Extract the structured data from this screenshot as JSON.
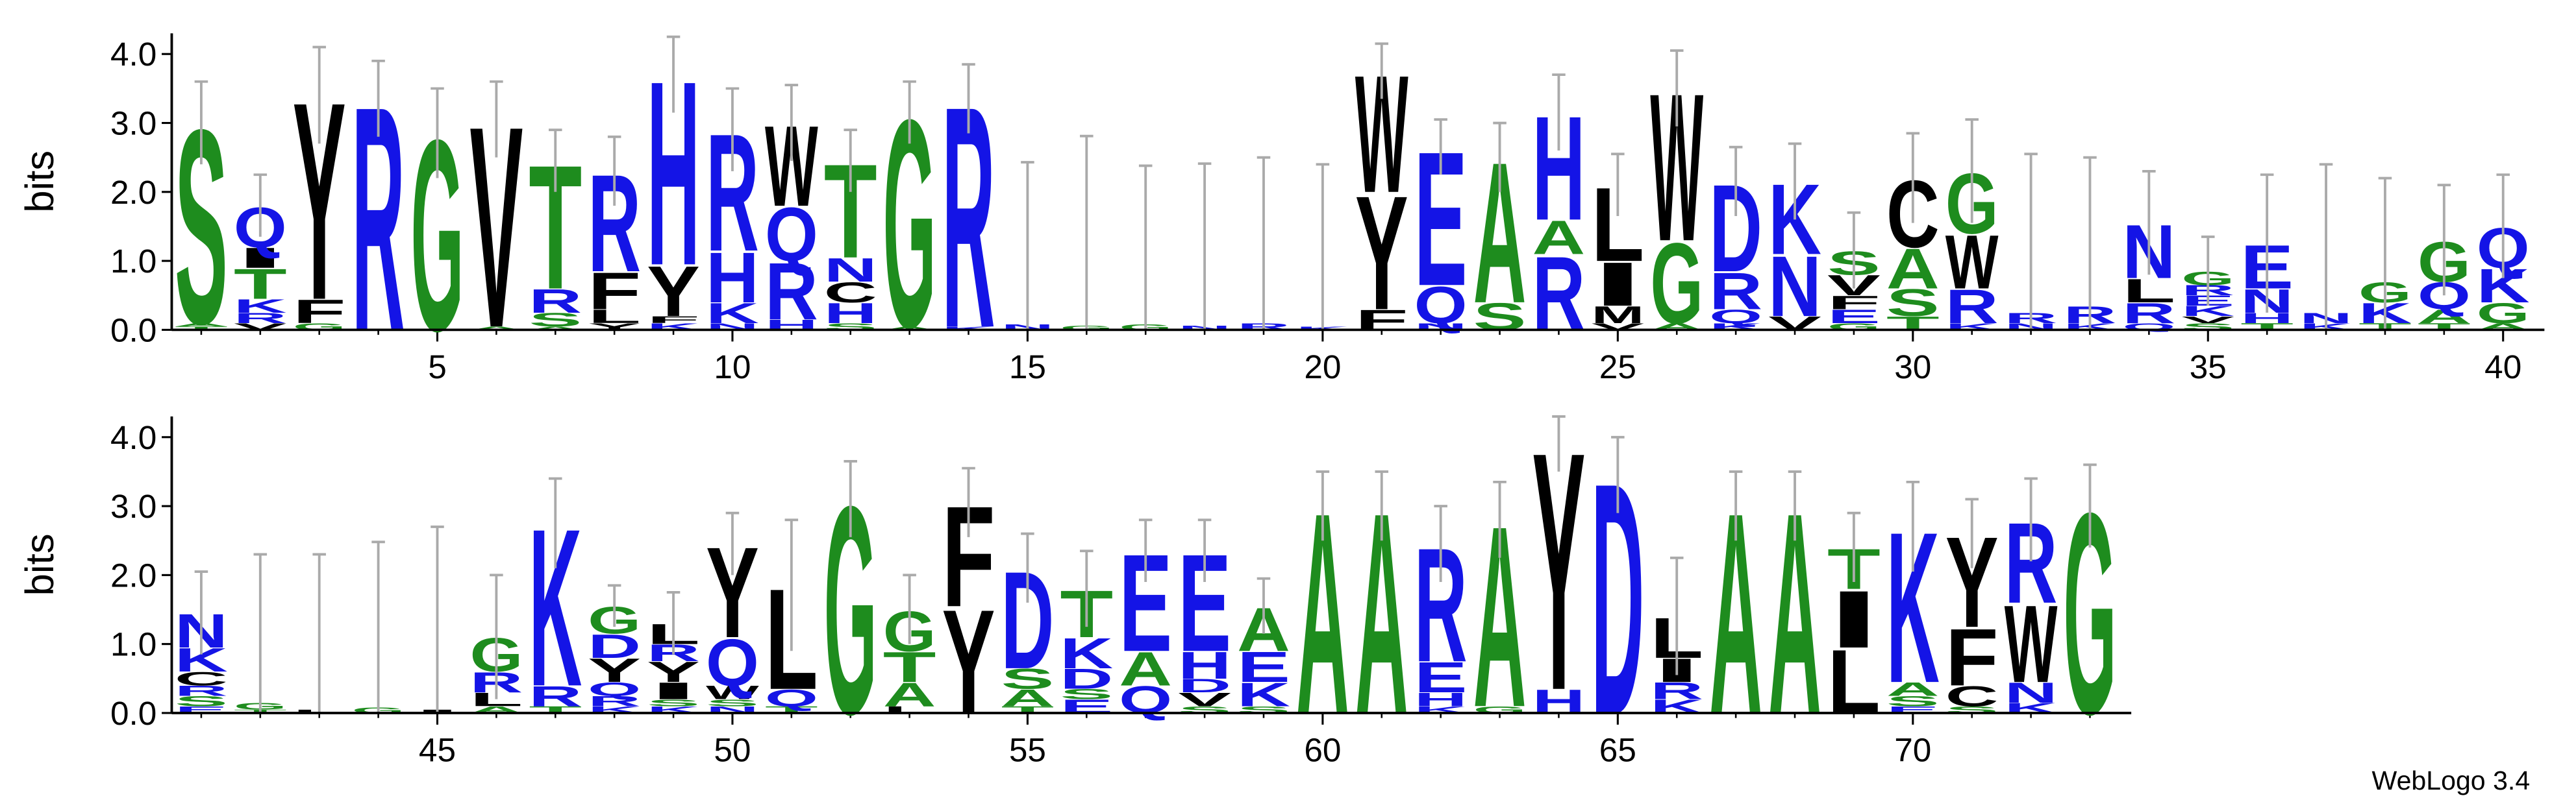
{
  "footer": "WebLogo 3.4",
  "chart_data": [
    {
      "type": "logo",
      "ylabel": "bits",
      "xlim": [
        0.5,
        40.7
      ],
      "ylim": [
        0,
        4.3
      ],
      "xticks": [
        5,
        10,
        15,
        20,
        25,
        30,
        35,
        40
      ],
      "yticks": [
        {
          "value": 0,
          "label": "0.0"
        },
        {
          "value": 1,
          "label": "1.0"
        },
        {
          "value": 2,
          "label": "2.0"
        },
        {
          "value": 3,
          "label": "3.0"
        },
        {
          "value": 4,
          "label": "4.0"
        }
      ],
      "colors": {
        "G": "#1e8c1e",
        "S": "#1e8c1e",
        "T": "#1e8c1e",
        "A": "#1e8c1e",
        "R": "#1414e6",
        "K": "#1414e6",
        "H": "#1414e6",
        "D": "#1414e6",
        "E": "#1414e6",
        "Q": "#1414e6",
        "N": "#1414e6",
        "Y": "#000000",
        "F": "#000000",
        "W": "#000000",
        "L": "#000000",
        "I": "#000000",
        "M": "#000000",
        "V": "#000000",
        "C": "#000000",
        "P": "#000000"
      },
      "x": [
        1,
        2,
        3,
        4,
        5,
        6,
        7,
        8,
        9,
        10,
        11,
        12,
        13,
        14,
        15,
        16,
        17,
        18,
        19,
        20,
        21,
        22,
        23,
        24,
        25,
        26,
        27,
        28,
        29,
        30,
        31,
        32,
        33,
        34,
        35,
        36,
        37,
        38,
        39,
        40
      ],
      "stacks": [
        [
          [
            "T",
            0.05
          ],
          [
            "A",
            0.05
          ],
          [
            "S",
            2.9
          ]
        ],
        [
          [
            "V",
            0.1
          ],
          [
            "R",
            0.15
          ],
          [
            "K",
            0.2
          ],
          [
            "T",
            0.45
          ],
          [
            "I",
            0.3
          ],
          [
            "Q",
            0.6
          ]
        ],
        [
          [
            "G",
            0.1
          ],
          [
            "F",
            0.35
          ],
          [
            "Y",
            2.95
          ]
        ],
        [
          [
            "R",
            3.35
          ]
        ],
        [
          [
            "G",
            2.85
          ]
        ],
        [
          [
            "A",
            0.05
          ],
          [
            "V",
            3.0
          ]
        ],
        [
          [
            "A",
            0.05
          ],
          [
            "S",
            0.2
          ],
          [
            "R",
            0.35
          ],
          [
            "T",
            1.85
          ]
        ],
        [
          [
            "Y",
            0.1
          ],
          [
            "L",
            0.2
          ],
          [
            "F",
            0.55
          ],
          [
            "R",
            1.45
          ]
        ],
        [
          [
            "K",
            0.1
          ],
          [
            "F",
            0.1
          ],
          [
            "Y",
            0.75
          ],
          [
            "H",
            2.75
          ]
        ],
        [
          [
            "N",
            0.1
          ],
          [
            "K",
            0.3
          ],
          [
            "H",
            0.75
          ],
          [
            "R",
            1.75
          ]
        ],
        [
          [
            "H",
            0.15
          ],
          [
            "R",
            0.85
          ],
          [
            "Q",
            0.8
          ],
          [
            "W",
            1.2
          ]
        ],
        [
          [
            "S",
            0.1
          ],
          [
            "H",
            0.3
          ],
          [
            "C",
            0.3
          ],
          [
            "N",
            0.35
          ],
          [
            "T",
            1.4
          ]
        ],
        [
          [
            "A",
            0.05
          ],
          [
            "G",
            3.1
          ]
        ],
        [
          [
            "K",
            0.05
          ],
          [
            "R",
            3.3
          ]
        ],
        [
          [
            "N",
            0.08
          ]
        ],
        [
          [
            "G",
            0.06
          ]
        ],
        [
          [
            "G",
            0.08
          ]
        ],
        [
          [
            "N",
            0.06
          ]
        ],
        [
          [
            "R",
            0.1
          ]
        ],
        [
          [
            "K",
            0.05
          ]
        ],
        [
          [
            "F",
            0.3
          ],
          [
            "Y",
            1.7
          ],
          [
            "W",
            1.75
          ]
        ],
        [
          [
            "N",
            0.1
          ],
          [
            "Q",
            0.55
          ],
          [
            "E",
            2.0
          ]
        ],
        [
          [
            "S",
            0.4
          ],
          [
            "A",
            2.1
          ]
        ],
        [
          [
            "R",
            1.1
          ],
          [
            "A",
            0.5
          ],
          [
            "H",
            1.55
          ]
        ],
        [
          [
            "V",
            0.1
          ],
          [
            "M",
            0.25
          ],
          [
            "I",
            0.65
          ],
          [
            "L",
            1.1
          ]
        ],
        [
          [
            "A",
            0.1
          ],
          [
            "G",
            1.2
          ],
          [
            "W",
            2.2
          ]
        ],
        [
          [
            "K",
            0.1
          ],
          [
            "Q",
            0.2
          ],
          [
            "R",
            0.55
          ],
          [
            "D",
            1.3
          ]
        ],
        [
          [
            "V",
            0.2
          ],
          [
            "N",
            0.9
          ],
          [
            "K",
            1.05
          ]
        ],
        [
          [
            "G",
            0.1
          ],
          [
            "E",
            0.2
          ],
          [
            "F",
            0.2
          ],
          [
            "V",
            0.3
          ],
          [
            "S",
            0.35
          ]
        ],
        [
          [
            "T",
            0.2
          ],
          [
            "S",
            0.4
          ],
          [
            "A",
            0.6
          ],
          [
            "C",
            1.0
          ]
        ],
        [
          [
            "K",
            0.1
          ],
          [
            "R",
            0.5
          ],
          [
            "W",
            0.8
          ],
          [
            "G",
            0.9
          ]
        ],
        [
          [
            "N",
            0.1
          ],
          [
            "R",
            0.15
          ]
        ],
        [
          [
            "K",
            0.1
          ],
          [
            "R",
            0.25
          ]
        ],
        [
          [
            "Q",
            0.1
          ],
          [
            "R",
            0.3
          ],
          [
            "L",
            0.35
          ],
          [
            "N",
            0.8
          ]
        ],
        [
          [
            "S",
            0.1
          ],
          [
            "V",
            0.1
          ],
          [
            "K",
            0.15
          ],
          [
            "E",
            0.15
          ],
          [
            "R",
            0.15
          ],
          [
            "G",
            0.2
          ]
        ],
        [
          [
            "T",
            0.1
          ],
          [
            "H",
            0.15
          ],
          [
            "N",
            0.35
          ],
          [
            "E",
            0.65
          ]
        ],
        [
          [
            "K",
            0.1
          ],
          [
            "N",
            0.15
          ]
        ],
        [
          [
            "T",
            0.1
          ],
          [
            "K",
            0.3
          ],
          [
            "G",
            0.3
          ]
        ],
        [
          [
            "T",
            0.1
          ],
          [
            "A",
            0.2
          ],
          [
            "Q",
            0.4
          ],
          [
            "G",
            0.6
          ]
        ],
        [
          [
            "A",
            0.1
          ],
          [
            "G",
            0.3
          ],
          [
            "K",
            0.5
          ],
          [
            "Q",
            0.6
          ]
        ]
      ],
      "errors": [
        0.6,
        0.45,
        0.7,
        0.55,
        0.65,
        0.55,
        0.45,
        0.5,
        0.55,
        0.6,
        0.55,
        0.45,
        0.45,
        0.5,
        2.35,
        2.75,
        2.3,
        2.35,
        2.4,
        2.35,
        0.4,
        0.4,
        0.5,
        0.55,
        0.45,
        0.55,
        0.5,
        0.55,
        0.55,
        0.65,
        0.75,
        2.3,
        2.15,
        0.75,
        0.5,
        1.0,
        2.15,
        1.5,
        0.8,
        0.75
      ]
    },
    {
      "type": "logo",
      "ylabel": "bits",
      "xlim": [
        40.5,
        73.7
      ],
      "ylim": [
        0,
        4.3
      ],
      "xticks": [
        45,
        50,
        55,
        60,
        65,
        70
      ],
      "yticks": [
        {
          "value": 0,
          "label": "0.0"
        },
        {
          "value": 1,
          "label": "1.0"
        },
        {
          "value": 2,
          "label": "2.0"
        },
        {
          "value": 3,
          "label": "3.0"
        },
        {
          "value": 4,
          "label": "4.0"
        }
      ],
      "colors": {
        "G": "#1e8c1e",
        "S": "#1e8c1e",
        "T": "#1e8c1e",
        "A": "#1e8c1e",
        "R": "#1414e6",
        "K": "#1414e6",
        "H": "#1414e6",
        "D": "#1414e6",
        "E": "#1414e6",
        "Q": "#1414e6",
        "N": "#1414e6",
        "Y": "#000000",
        "F": "#000000",
        "W": "#000000",
        "L": "#000000",
        "I": "#000000",
        "M": "#000000",
        "V": "#000000",
        "C": "#000000",
        "P": "#000000"
      },
      "x": [
        41,
        42,
        43,
        44,
        45,
        46,
        47,
        48,
        49,
        50,
        51,
        52,
        53,
        54,
        55,
        56,
        57,
        58,
        59,
        60,
        61,
        62,
        63,
        64,
        65,
        66,
        67,
        68,
        69,
        70,
        71,
        72,
        73
      ],
      "stacks": [
        [
          [
            "E",
            0.1
          ],
          [
            "S",
            0.15
          ],
          [
            "R",
            0.15
          ],
          [
            "C",
            0.2
          ],
          [
            "K",
            0.35
          ],
          [
            "N",
            0.5
          ]
        ],
        [
          [
            "T",
            0.05
          ],
          [
            "G",
            0.1
          ]
        ],
        [
          [
            "L",
            0.05
          ]
        ],
        [
          [
            "G",
            0.08
          ]
        ],
        [
          [
            "I",
            0.05
          ]
        ],
        [
          [
            "A",
            0.1
          ],
          [
            "L",
            0.2
          ],
          [
            "R",
            0.3
          ],
          [
            "G",
            0.5
          ]
        ],
        [
          [
            "T",
            0.1
          ],
          [
            "R",
            0.3
          ],
          [
            "K",
            2.35
          ]
        ],
        [
          [
            "K",
            0.1
          ],
          [
            "R",
            0.15
          ],
          [
            "Q",
            0.2
          ],
          [
            "Y",
            0.35
          ],
          [
            "D",
            0.35
          ],
          [
            "G",
            0.4
          ]
        ],
        [
          [
            "K",
            0.1
          ],
          [
            "S",
            0.1
          ],
          [
            "I",
            0.25
          ],
          [
            "Y",
            0.3
          ],
          [
            "R",
            0.25
          ],
          [
            "L",
            0.3
          ]
        ],
        [
          [
            "N",
            0.1
          ],
          [
            "S",
            0.1
          ],
          [
            "W",
            0.2
          ],
          [
            "Q",
            0.7
          ],
          [
            "Y",
            1.35
          ]
        ],
        [
          [
            "T",
            0.1
          ],
          [
            "Q",
            0.25
          ],
          [
            "L",
            1.5
          ]
        ],
        [
          [
            "G",
            3.1
          ]
        ],
        [
          [
            "L",
            0.1
          ],
          [
            "A",
            0.35
          ],
          [
            "T",
            0.45
          ],
          [
            "G",
            0.6
          ]
        ],
        [
          [
            "Y",
            1.55
          ],
          [
            "F",
            1.5
          ]
        ],
        [
          [
            "T",
            0.1
          ],
          [
            "A",
            0.25
          ],
          [
            "S",
            0.3
          ],
          [
            "D",
            1.45
          ]
        ],
        [
          [
            "E",
            0.2
          ],
          [
            "S",
            0.15
          ],
          [
            "D",
            0.3
          ],
          [
            "K",
            0.45
          ],
          [
            "T",
            0.7
          ]
        ],
        [
          [
            "Q",
            0.4
          ],
          [
            "A",
            0.5
          ],
          [
            "E",
            1.45
          ]
        ],
        [
          [
            "S",
            0.1
          ],
          [
            "V",
            0.2
          ],
          [
            "D",
            0.2
          ],
          [
            "H",
            0.4
          ],
          [
            "E",
            1.45
          ]
        ],
        [
          [
            "S",
            0.1
          ],
          [
            "K",
            0.35
          ],
          [
            "E",
            0.45
          ],
          [
            "A",
            0.65
          ]
        ],
        [
          [
            "A",
            3.0
          ]
        ],
        [
          [
            "A",
            3.0
          ]
        ],
        [
          [
            "K",
            0.1
          ],
          [
            "H",
            0.2
          ],
          [
            "E",
            0.45
          ],
          [
            "R",
            1.7
          ]
        ],
        [
          [
            "G",
            0.1
          ],
          [
            "A",
            2.7
          ]
        ],
        [
          [
            "H",
            0.35
          ],
          [
            "Y",
            3.55
          ]
        ],
        [
          [
            "D",
            3.45
          ]
        ],
        [
          [
            "K",
            0.2
          ],
          [
            "R",
            0.25
          ],
          [
            "I",
            0.35
          ],
          [
            "L",
            0.6
          ]
        ],
        [
          [
            "A",
            3.0
          ]
        ],
        [
          [
            "A",
            3.0
          ]
        ],
        [
          [
            "L",
            0.95
          ],
          [
            "I",
            0.85
          ],
          [
            "T",
            0.6
          ]
        ],
        [
          [
            "E",
            0.1
          ],
          [
            "S",
            0.15
          ],
          [
            "A",
            0.2
          ],
          [
            "K",
            2.25
          ]
        ],
        [
          [
            "S",
            0.1
          ],
          [
            "C",
            0.3
          ],
          [
            "F",
            0.85
          ],
          [
            "Y",
            1.35
          ]
        ],
        [
          [
            "K",
            0.15
          ],
          [
            "N",
            0.3
          ],
          [
            "W",
            1.15
          ],
          [
            "R",
            1.2
          ]
        ],
        [
          [
            "G",
            3.0
          ]
        ]
      ],
      "errors": [
        0.6,
        2.15,
        2.25,
        2.4,
        2.65,
        0.9,
        0.65,
        0.3,
        0.45,
        0.45,
        0.95,
        0.55,
        0.5,
        0.5,
        0.5,
        0.55,
        0.45,
        0.45,
        0.4,
        0.5,
        0.5,
        0.55,
        0.55,
        0.4,
        0.55,
        0.85,
        0.5,
        0.5,
        0.5,
        0.65,
        0.5,
        0.6,
        0.6
      ]
    }
  ]
}
